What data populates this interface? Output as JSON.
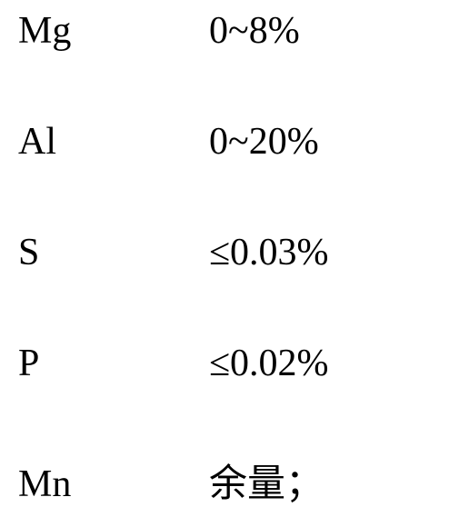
{
  "composition": {
    "rows": [
      {
        "element": "Mg",
        "value": "0~8%"
      },
      {
        "element": "Al",
        "value": "0~20%"
      },
      {
        "element": "S",
        "value": "≤0.03%"
      },
      {
        "element": "P",
        "value": "≤0.02%"
      },
      {
        "element": "Mn",
        "value": "余量；"
      }
    ]
  },
  "styling": {
    "background_color": "#ffffff",
    "text_color": "#000000",
    "font_family": "Times New Roman",
    "font_size_pt": 32,
    "label_column_width": 210,
    "row_spacing": "space-between"
  }
}
